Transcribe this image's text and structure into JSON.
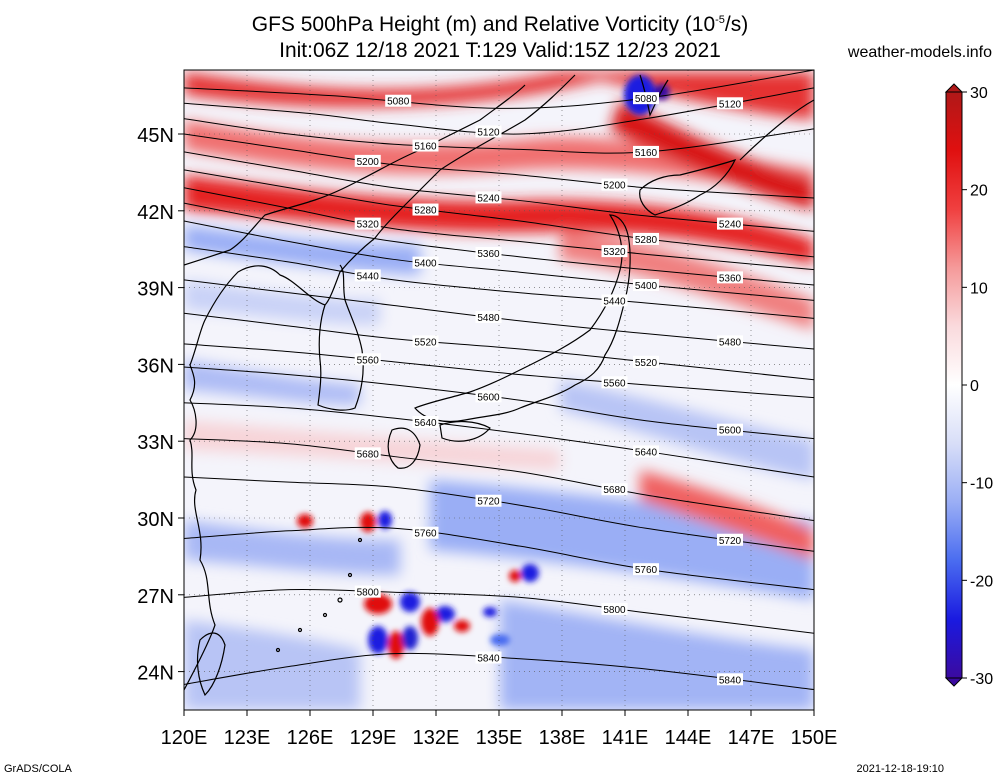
{
  "title_line1": "GFS 500hPa Height (m) and Relative Vorticity (10",
  "title_sup": "-5",
  "title_line1_end": "/s)",
  "title_line2": "Init:06Z 12/18 2021 T:129 Valid:15Z 12/23 2021",
  "site": "weather-models.info",
  "footer_left": "GrADS/COLA",
  "footer_right": "2021-12-18-19:10",
  "chart_data": {
    "type": "map",
    "lon_range": [
      120,
      150
    ],
    "lat_range": [
      22.5,
      47.5
    ],
    "lon_ticks": [
      "120E",
      "123E",
      "126E",
      "129E",
      "132E",
      "135E",
      "138E",
      "141E",
      "144E",
      "147E",
      "150E"
    ],
    "lat_ticks": [
      "24N",
      "27N",
      "30N",
      "33N",
      "36N",
      "39N",
      "42N",
      "45N"
    ],
    "lat_tick_values": [
      24,
      27,
      30,
      33,
      36,
      39,
      42,
      45
    ],
    "colorbar": {
      "min": -30,
      "max": 30,
      "ticks": [
        "30",
        "20",
        "10",
        "0",
        "-10",
        "-20",
        "-30"
      ],
      "tick_values": [
        30,
        20,
        10,
        0,
        -10,
        -20,
        -30
      ],
      "colors": [
        "#3b0aa0",
        "#1a1ae0",
        "#4a6cf0",
        "#9aaef5",
        "#d8def8",
        "#ffffff",
        "#fadadd",
        "#f59a9a",
        "#f04040",
        "#e01010",
        "#b01818"
      ]
    },
    "height_contours": [
      {
        "label": "5080",
        "lat": [
          46.8,
          46.5,
          46.0,
          46.4,
          47.5
        ],
        "lon": [
          120,
          127,
          135,
          142,
          150
        ]
      },
      {
        "label": "5120",
        "lat": [
          46.2,
          45.8,
          45.4,
          45.0,
          45.6,
          46.8
        ],
        "lon": [
          120,
          126,
          130,
          136,
          142,
          150
        ]
      },
      {
        "label": "5160",
        "lat": [
          45.6,
          45.0,
          44.6,
          44.4,
          44.3,
          45.2
        ],
        "lon": [
          120,
          125,
          130,
          136,
          142,
          150
        ]
      },
      {
        "label": "5200",
        "lat": [
          45.0,
          44.4,
          43.8,
          43.4,
          42.9,
          42.5
        ],
        "lon": [
          120,
          125,
          130,
          136,
          142,
          150
        ]
      },
      {
        "label": "5240",
        "lat": [
          44.3,
          43.6,
          42.9,
          42.4,
          41.8,
          41.2
        ],
        "lon": [
          120,
          125,
          130,
          136,
          142,
          150
        ]
      },
      {
        "label": "5280",
        "lat": [
          43.6,
          42.9,
          42.2,
          41.6,
          40.9,
          40.2
        ],
        "lon": [
          120,
          125,
          130,
          136,
          142,
          150
        ]
      },
      {
        "label": "5320",
        "lat": [
          42.9,
          42.1,
          41.3,
          40.8,
          40.3,
          39.7
        ],
        "lon": [
          120,
          125,
          130,
          136,
          142,
          150
        ]
      },
      {
        "label": "5360",
        "lat": [
          42.3,
          41.5,
          40.8,
          40.2,
          39.7,
          39.1
        ],
        "lon": [
          120,
          125,
          130,
          136,
          142,
          150
        ]
      },
      {
        "label": "5400",
        "lat": [
          41.6,
          40.8,
          40.1,
          39.6,
          39.1,
          38.5
        ],
        "lon": [
          120,
          125,
          130,
          136,
          142,
          150
        ]
      },
      {
        "label": "5440",
        "lat": [
          40.6,
          40.0,
          39.3,
          38.8,
          38.4,
          37.8
        ],
        "lon": [
          120,
          125,
          130,
          136,
          142,
          150
        ]
      },
      {
        "label": "5480",
        "lat": [
          39.3,
          38.8,
          38.3,
          37.7,
          37.2,
          36.6
        ],
        "lon": [
          120,
          125,
          130,
          136,
          142,
          150
        ]
      },
      {
        "label": "5520",
        "lat": [
          38.0,
          37.5,
          37.0,
          36.6,
          36.1,
          35.4
        ],
        "lon": [
          120,
          125,
          130,
          136,
          142,
          150
        ]
      },
      {
        "label": "5560",
        "lat": [
          36.8,
          36.5,
          36.1,
          35.6,
          35.2,
          34.7
        ],
        "lon": [
          120,
          125,
          130,
          136,
          142,
          150
        ]
      },
      {
        "label": "5600",
        "lat": [
          35.9,
          35.6,
          35.2,
          34.6,
          33.8,
          33.1
        ],
        "lon": [
          120,
          125,
          130,
          136,
          142,
          150
        ]
      },
      {
        "label": "5640",
        "lat": [
          34.5,
          34.3,
          33.9,
          33.3,
          32.6,
          31.6
        ],
        "lon": [
          120,
          125,
          130,
          136,
          142,
          150
        ]
      },
      {
        "label": "5680",
        "lat": [
          33.1,
          32.9,
          32.4,
          31.8,
          30.9,
          29.9
        ],
        "lon": [
          120,
          125,
          130,
          136,
          142,
          150
        ]
      },
      {
        "label": "5720",
        "lat": [
          31.6,
          31.4,
          31.2,
          30.5,
          29.6,
          28.7
        ],
        "lon": [
          120,
          125,
          130,
          136,
          142,
          150
        ]
      },
      {
        "label": "5760",
        "lat": [
          29.2,
          29.5,
          29.6,
          28.9,
          28.0,
          27.2
        ],
        "lon": [
          120,
          125,
          130,
          136,
          142,
          150
        ]
      },
      {
        "label": "5800",
        "lat": [
          26.9,
          27.2,
          27.1,
          26.9,
          26.3,
          25.5
        ],
        "lon": [
          120,
          125,
          130,
          136,
          142,
          150
        ]
      },
      {
        "label": "5840",
        "lat": [
          23.5,
          24.2,
          24.7,
          24.5,
          24.1,
          23.3
        ],
        "lon": [
          120,
          125,
          130,
          136,
          142,
          150
        ]
      }
    ]
  }
}
